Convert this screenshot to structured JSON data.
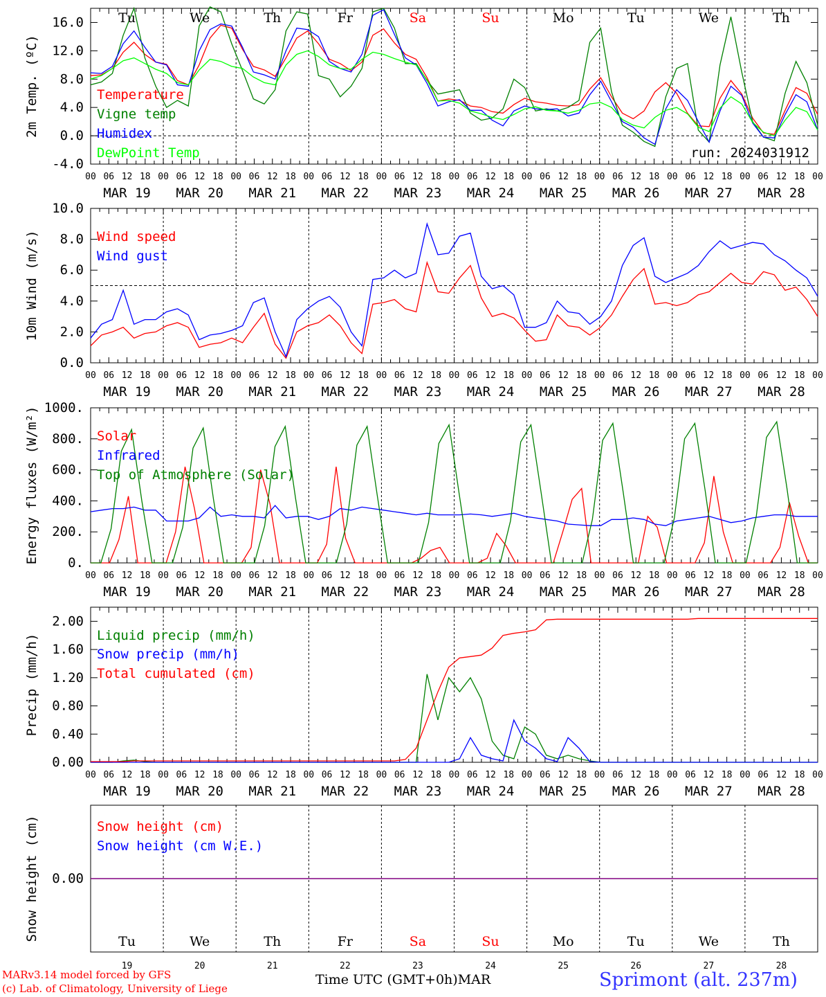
{
  "panels_common": {
    "dates": [
      "MAR 19",
      "MAR 20",
      "MAR 21",
      "MAR 22",
      "MAR 23",
      "MAR 24",
      "MAR 25",
      "MAR 26",
      "MAR 27",
      "MAR 28"
    ],
    "hour_ticks": [
      "00",
      "06",
      "12",
      "18"
    ],
    "weekdays": [
      "Tu",
      "We",
      "Th",
      "Fr",
      "Sa",
      "Su",
      "Mo",
      "Tu",
      "We",
      "Th"
    ],
    "weekend_color": "#ff0000",
    "weekday_color": "#000000"
  },
  "chart_data": [
    {
      "type": "line",
      "ylabel": "2m Temp. (ºC)",
      "ylim": [
        -4,
        18
      ],
      "yticks": [
        "-4.0",
        "0.0",
        "4.0",
        "8.0",
        "12.0",
        "16.0"
      ],
      "ytick_values": [
        -4,
        0,
        4,
        8,
        12,
        16
      ],
      "ref_line": 0,
      "annotation": "run: 2024031912",
      "x_hours_start": 0,
      "x_hours_step": 6,
      "series": [
        {
          "name": "Temperature",
          "color": "#ff0000",
          "values": [
            8.5,
            8.6,
            9.5,
            11.8,
            13.2,
            11.5,
            10.4,
            10.1,
            7.8,
            7.2,
            10.0,
            13.8,
            15.6,
            15.2,
            12.2,
            9.8,
            9.3,
            8.4,
            11.0,
            13.8,
            14.8,
            13.0,
            10.8,
            10.2,
            9.2,
            10.4,
            14.2,
            15.1,
            13.1,
            11.5,
            10.8,
            8.2,
            4.9,
            5.2,
            5.0,
            4.2,
            4.0,
            3.4,
            3.2,
            4.4,
            5.3,
            4.8,
            4.6,
            4.3,
            4.2,
            4.4,
            6.6,
            8.2,
            5.5,
            3.2,
            2.4,
            3.5,
            6.2,
            7.5,
            6.0,
            3.2,
            1.4,
            1.3,
            5.3,
            7.8,
            5.9,
            2.5,
            0.4,
            0.2,
            3.6,
            6.8,
            6.0,
            3.0
          ]
        },
        {
          "name": "Vigne temp",
          "color": "#008000",
          "values": [
            7.2,
            7.6,
            8.8,
            14.2,
            18.0,
            11.0,
            7.0,
            4.0,
            5.0,
            4.2,
            15.5,
            18.2,
            17.5,
            13.0,
            9.2,
            5.2,
            4.5,
            6.5,
            14.8,
            17.5,
            17.2,
            8.5,
            8.0,
            5.5,
            7.0,
            9.5,
            17.5,
            18.0,
            15.2,
            10.2,
            10.2,
            7.8,
            5.9,
            6.2,
            6.5,
            3.2,
            2.2,
            2.5,
            3.8,
            8.0,
            6.8,
            3.5,
            3.8,
            3.5,
            4.0,
            5.0,
            13.2,
            15.2,
            6.2,
            1.5,
            0.5,
            -0.8,
            -1.5,
            5.5,
            9.5,
            10.2,
            0.8,
            -0.9,
            10.0,
            16.8,
            9.0,
            2.0,
            -0.2,
            -0.7,
            6.0,
            10.5,
            7.5,
            1.5
          ]
        },
        {
          "name": "Humidex",
          "color": "#0000ff",
          "values": [
            8.9,
            8.8,
            9.8,
            13.0,
            14.8,
            12.5,
            10.4,
            10.0,
            7.2,
            7.0,
            12.0,
            15.0,
            15.8,
            15.5,
            12.5,
            9.0,
            8.6,
            8.0,
            12.0,
            15.2,
            15.0,
            14.0,
            10.5,
            9.5,
            9.0,
            11.5,
            17.0,
            17.8,
            14.3,
            11.0,
            10.0,
            7.4,
            4.2,
            4.8,
            5.1,
            3.6,
            3.6,
            2.2,
            1.4,
            3.5,
            4.2,
            3.8,
            3.7,
            3.8,
            2.8,
            3.2,
            5.8,
            7.7,
            4.8,
            2.0,
            1.2,
            -0.3,
            -1.2,
            3.8,
            6.5,
            5.0,
            2.0,
            -0.9,
            3.5,
            7.0,
            5.7,
            1.8,
            -0.2,
            -0.3,
            3.0,
            5.8,
            4.8,
            0.8
          ]
        },
        {
          "name": "DewPoint Temp",
          "color": "#00ff00",
          "values": [
            8.0,
            8.5,
            9.5,
            10.6,
            11.0,
            10.2,
            9.4,
            8.8,
            7.5,
            7.2,
            9.3,
            10.8,
            10.5,
            9.8,
            9.5,
            8.3,
            7.5,
            7.2,
            10.0,
            11.5,
            12.0,
            11.2,
            10.0,
            9.5,
            9.4,
            10.8,
            11.8,
            11.5,
            10.9,
            10.4,
            10.0,
            7.9,
            4.9,
            5.0,
            4.6,
            3.5,
            3.1,
            2.6,
            2.3,
            3.0,
            3.8,
            4.1,
            3.6,
            3.5,
            3.2,
            3.6,
            4.5,
            4.7,
            4.0,
            2.3,
            1.5,
            1.1,
            2.6,
            3.6,
            4.0,
            3.1,
            1.2,
            0.6,
            3.9,
            5.5,
            4.5,
            1.9,
            0.5,
            0.0,
            2.2,
            4.0,
            3.4,
            0.8
          ]
        }
      ]
    },
    {
      "type": "line",
      "ylabel": "10m Wind (m/s)",
      "ylim": [
        0,
        10
      ],
      "yticks": [
        "0.0",
        "2.0",
        "4.0",
        "6.0",
        "8.0",
        "10.0"
      ],
      "ytick_values": [
        0,
        2,
        4,
        6,
        8,
        10
      ],
      "ref_line": 5,
      "x_hours_start": 0,
      "x_hours_step": 6,
      "series": [
        {
          "name": "Wind speed",
          "color": "#ff0000",
          "values": [
            1.1,
            1.8,
            2.0,
            2.3,
            1.6,
            1.9,
            2.0,
            2.4,
            2.6,
            2.3,
            1.0,
            1.2,
            1.3,
            1.6,
            1.3,
            2.3,
            3.2,
            1.2,
            0.3,
            2.0,
            2.4,
            2.6,
            3.1,
            2.4,
            1.3,
            0.6,
            3.8,
            3.9,
            4.1,
            3.5,
            3.3,
            6.5,
            4.6,
            4.5,
            5.5,
            6.3,
            4.2,
            3.0,
            3.2,
            2.9,
            2.1,
            1.4,
            1.5,
            3.1,
            2.4,
            2.3,
            1.8,
            2.3,
            3.1,
            4.3,
            5.4,
            6.1,
            3.8,
            3.9,
            3.7,
            3.9,
            4.4,
            4.6,
            5.2,
            5.8,
            5.2,
            5.1,
            5.9,
            5.7,
            4.7,
            4.9,
            4.1,
            3.0
          ]
        },
        {
          "name": "Wind gust",
          "color": "#0000ff",
          "values": [
            1.6,
            2.5,
            2.8,
            4.7,
            2.5,
            2.8,
            2.8,
            3.3,
            3.5,
            3.1,
            1.5,
            1.8,
            1.9,
            2.1,
            2.4,
            3.9,
            4.2,
            2.0,
            0.4,
            2.8,
            3.5,
            4.0,
            4.3,
            3.6,
            2.0,
            1.1,
            5.4,
            5.5,
            6.0,
            5.5,
            5.8,
            9.0,
            7.0,
            7.1,
            8.2,
            8.4,
            5.6,
            4.8,
            5.0,
            4.4,
            2.3,
            2.3,
            2.6,
            4.0,
            3.3,
            3.2,
            2.5,
            3.0,
            4.0,
            6.3,
            7.6,
            8.1,
            5.6,
            5.2,
            5.5,
            5.8,
            6.3,
            7.2,
            7.9,
            7.4,
            7.6,
            7.8,
            7.7,
            7.0,
            6.6,
            6.0,
            5.5,
            4.3
          ]
        }
      ]
    },
    {
      "type": "line",
      "ylabel": "Energy fluxes (W/m²)",
      "ylim": [
        0,
        1000
      ],
      "yticks": [
        "0.",
        "200.",
        "400.",
        "600.",
        "800.",
        "1000."
      ],
      "ytick_values": [
        0,
        200,
        400,
        600,
        800,
        1000
      ],
      "x_hours_start": 0,
      "x_hours_step": 6,
      "series": [
        {
          "name": "Solar",
          "color": "#ff0000",
          "values": [
            0,
            0,
            0,
            150,
            430,
            0,
            0,
            0,
            0,
            200,
            620,
            350,
            0,
            0,
            0,
            0,
            0,
            100,
            600,
            380,
            0,
            0,
            0,
            0,
            0,
            120,
            620,
            160,
            0,
            0,
            0,
            0,
            0,
            0,
            0,
            30,
            80,
            100,
            0,
            0,
            0,
            0,
            30,
            190,
            110,
            0,
            0,
            0,
            0,
            0,
            200,
            410,
            480,
            0,
            0,
            0,
            0,
            0,
            0,
            300,
            230,
            0,
            0,
            0,
            0,
            130,
            560,
            200,
            0,
            0,
            0,
            0,
            0,
            100,
            390,
            170,
            0,
            0
          ]
        },
        {
          "name": "Infrared",
          "color": "#0000ff",
          "values": [
            330,
            340,
            350,
            350,
            360,
            340,
            340,
            270,
            270,
            270,
            290,
            360,
            300,
            310,
            300,
            300,
            290,
            370,
            290,
            300,
            300,
            280,
            300,
            350,
            340,
            360,
            350,
            340,
            330,
            320,
            310,
            320,
            310,
            310,
            310,
            315,
            310,
            300,
            310,
            320,
            300,
            290,
            280,
            270,
            250,
            245,
            240,
            240,
            280,
            280,
            290,
            280,
            250,
            240,
            270,
            280,
            290,
            300,
            280,
            260,
            270,
            290,
            300,
            310,
            310,
            300,
            300,
            300
          ]
        },
        {
          "name": "Top of Atmosphere (Solar)",
          "color": "#008000",
          "values": [
            0,
            0,
            220,
            720,
            860,
            400,
            0,
            0,
            0,
            230,
            740,
            870,
            410,
            0,
            0,
            0,
            0,
            240,
            750,
            880,
            420,
            0,
            0,
            0,
            0,
            250,
            760,
            880,
            430,
            0,
            0,
            0,
            0,
            260,
            770,
            890,
            440,
            0,
            0,
            0,
            0,
            270,
            780,
            890,
            450,
            0,
            0,
            0,
            0,
            280,
            790,
            900,
            460,
            0,
            0,
            0,
            0,
            290,
            800,
            900,
            470,
            0,
            0,
            0,
            0,
            300,
            810,
            910,
            480,
            0,
            0,
            0
          ]
        }
      ]
    },
    {
      "type": "line",
      "ylabel": "Precip (mm/h)",
      "ylim": [
        0,
        2.2
      ],
      "yticks": [
        "0.00",
        "0.40",
        "0.80",
        "1.20",
        "1.60",
        "2.00"
      ],
      "ytick_values": [
        0,
        0.4,
        0.8,
        1.2,
        1.6,
        2.0
      ],
      "x_hours_start": 0,
      "x_hours_step": 6,
      "series": [
        {
          "name": "Liquid precip (mm/h)",
          "color": "#008000",
          "values": [
            0,
            0,
            0,
            0.02,
            0.03,
            0.01,
            0,
            0,
            0,
            0,
            0,
            0,
            0,
            0,
            0,
            0,
            0,
            0,
            0,
            0,
            0,
            0,
            0,
            0,
            0,
            0,
            0,
            0,
            0,
            0,
            0,
            1.25,
            0.6,
            1.2,
            1.0,
            1.2,
            0.9,
            0.3,
            0.1,
            0.05,
            0.5,
            0.4,
            0.1,
            0.05,
            0.1,
            0.05,
            0.02,
            0,
            0,
            0,
            0,
            0,
            0,
            0,
            0,
            0,
            0,
            0,
            0,
            0,
            0,
            0,
            0,
            0,
            0,
            0,
            0,
            0
          ]
        },
        {
          "name": "Snow precip (mm/h)",
          "color": "#0000ff",
          "values": [
            0,
            0,
            0,
            0,
            0,
            0,
            0,
            0,
            0,
            0,
            0,
            0,
            0,
            0,
            0,
            0,
            0,
            0,
            0,
            0,
            0,
            0,
            0,
            0,
            0,
            0,
            0,
            0,
            0,
            0,
            0,
            0,
            0,
            0,
            0.05,
            0.35,
            0.1,
            0.05,
            0.02,
            0.6,
            0.3,
            0.2,
            0.05,
            0.01,
            0.35,
            0.2,
            0.01,
            0,
            0,
            0,
            0,
            0,
            0,
            0,
            0,
            0,
            0,
            0,
            0,
            0,
            0,
            0,
            0,
            0,
            0,
            0,
            0,
            0
          ]
        },
        {
          "name": "Total cumulated (cm)",
          "color": "#ff0000",
          "values": [
            0.01,
            0.01,
            0.01,
            0.01,
            0.02,
            0.02,
            0.02,
            0.02,
            0.02,
            0.02,
            0.02,
            0.02,
            0.02,
            0.02,
            0.02,
            0.02,
            0.02,
            0.02,
            0.02,
            0.02,
            0.02,
            0.02,
            0.02,
            0.02,
            0.02,
            0.02,
            0.02,
            0.02,
            0.02,
            0.04,
            0.2,
            0.6,
            1.0,
            1.35,
            1.48,
            1.5,
            1.52,
            1.62,
            1.8,
            1.83,
            1.85,
            1.88,
            2.02,
            2.03,
            2.03,
            2.03,
            2.03,
            2.03,
            2.03,
            2.03,
            2.03,
            2.03,
            2.03,
            2.03,
            2.03,
            2.03,
            2.04,
            2.04,
            2.04,
            2.04,
            2.04,
            2.04,
            2.04,
            2.04,
            2.04,
            2.04,
            2.04,
            2.04
          ]
        }
      ]
    },
    {
      "type": "line",
      "ylabel": "Snow height (cm)",
      "yticks": [
        "0.00"
      ],
      "ytick_values": [
        0
      ],
      "ylim": [
        -1,
        1
      ],
      "x_hours_start": 0,
      "x_hours_step": 6,
      "series": [
        {
          "name": "Snow height (cm)",
          "color": "#ff0000",
          "values": [
            0,
            0
          ]
        },
        {
          "name": "Snow height (cm W.E.)",
          "color": "#0000ff",
          "values": [
            0,
            0
          ]
        }
      ],
      "line_color": "#800080",
      "day_numbers": [
        "19",
        "20",
        "21",
        "22",
        "23",
        "24",
        "25",
        "26",
        "27",
        "28"
      ]
    }
  ],
  "footer": {
    "model_line": "MARv3.14 model forced by GFS",
    "lab_line": "(c) Lab. of Climatology, University of Liege",
    "xaxis_title": "Time UTC (GMT+0h)",
    "month": "MAR",
    "station": "Sprimont (alt. 237m)"
  }
}
